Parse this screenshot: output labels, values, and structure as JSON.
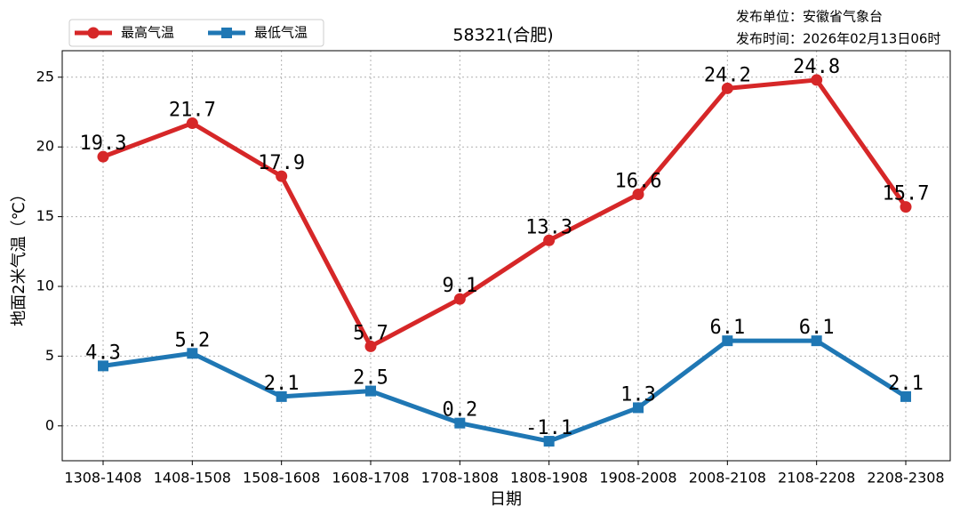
{
  "chart_data": {
    "type": "line",
    "title": "58321(合肥)",
    "source_lines": [
      "发布单位：安徽省气象台",
      "发布时间：2026年02月13日06时"
    ],
    "x_label": "日期",
    "y_label": "地面2米气温（℃）",
    "categories": [
      "1308-1408",
      "1408-1508",
      "1508-1608",
      "1608-1708",
      "1708-1808",
      "1808-1908",
      "1908-2008",
      "2008-2108",
      "2108-2208",
      "2208-2308"
    ],
    "series": [
      {
        "name": "最高气温",
        "color": "#d62728",
        "marker": "circle",
        "values": [
          19.3,
          21.7,
          17.9,
          5.7,
          9.1,
          13.3,
          16.6,
          24.2,
          24.8,
          15.7
        ]
      },
      {
        "name": "最低气温",
        "color": "#1f77b4",
        "marker": "square",
        "values": [
          4.3,
          5.2,
          2.1,
          2.5,
          0.2,
          -1.1,
          1.3,
          6.1,
          6.1,
          2.1
        ]
      }
    ],
    "ylim": [
      -2.5,
      26.9
    ],
    "yticks": [
      0,
      5,
      10,
      15,
      20,
      25
    ],
    "grid": true,
    "legend": "upper-left"
  }
}
